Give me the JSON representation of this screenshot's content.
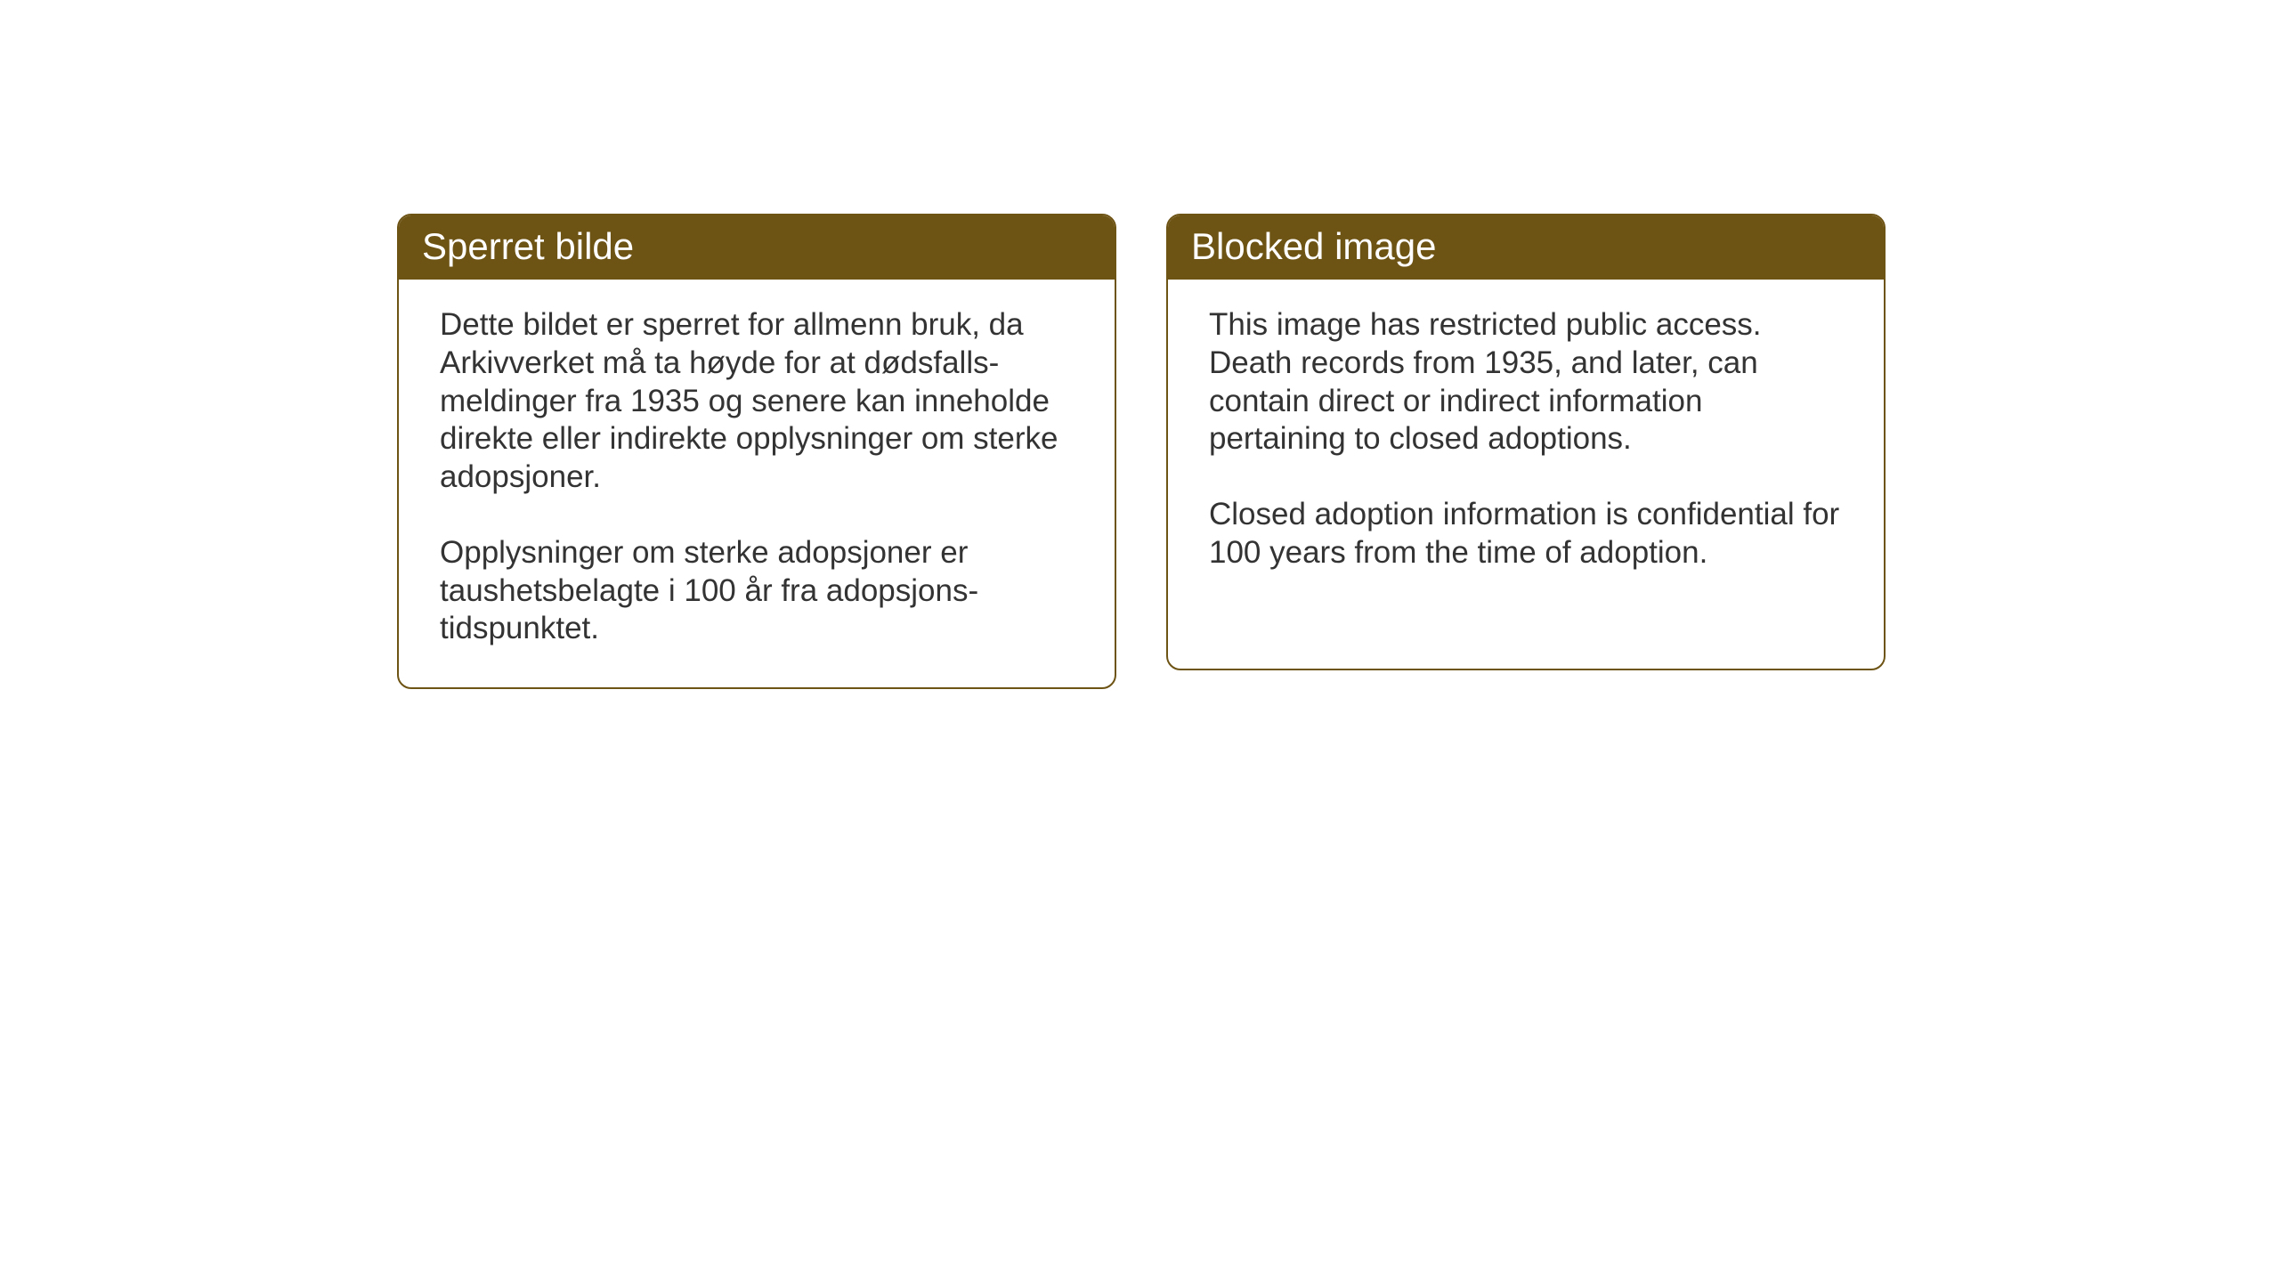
{
  "layout": {
    "background_color": "#ffffff",
    "card_border_color": "#6d5314",
    "card_header_bg": "#6d5314",
    "card_header_text_color": "#ffffff",
    "card_body_text_color": "#333333",
    "card_border_radius": 16,
    "header_fontsize": 42,
    "body_fontsize": 35
  },
  "cards": {
    "norwegian": {
      "title": "Sperret bilde",
      "paragraph1": "Dette bildet er sperret for allmenn bruk, da Arkivverket må ta høyde for at dødsfalls-meldinger fra 1935 og senere kan inneholde direkte eller indirekte opplysninger om sterke adopsjoner.",
      "paragraph2": "Opplysninger om sterke adopsjoner er taushetsbelagte i 100 år fra adopsjons-tidspunktet."
    },
    "english": {
      "title": "Blocked image",
      "paragraph1": "This image has restricted public access. Death records from 1935, and later, can contain direct or indirect information pertaining to closed adoptions.",
      "paragraph2": "Closed adoption information is confidential for 100 years from the time of adoption."
    }
  }
}
